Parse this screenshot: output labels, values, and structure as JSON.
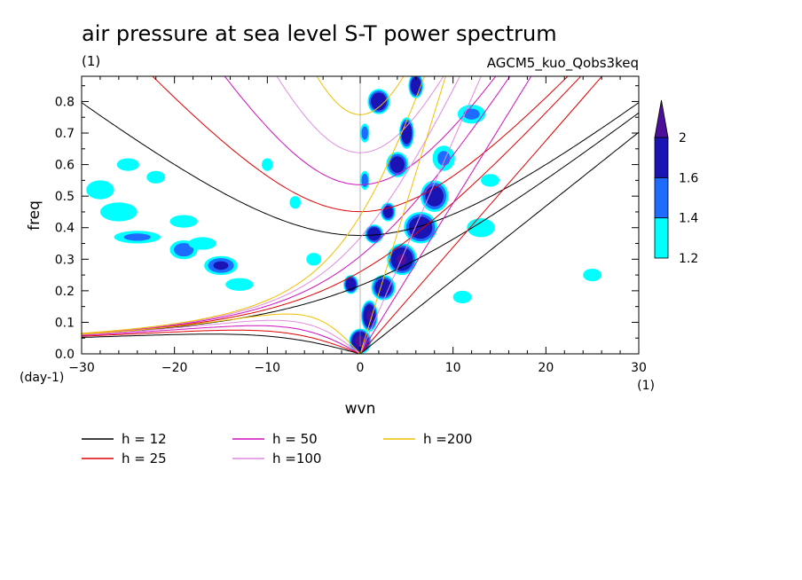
{
  "chart_data": {
    "type": "heatmap",
    "title": "air pressure at sea level S-T power spectrum",
    "title_units": "(1)",
    "model_label": "AGCM5_kuo_Qobs3keq",
    "xlabel": "wvn",
    "ylabel": "freq",
    "x_unit_label": "(1)",
    "y_unit_label": "(day-1)",
    "xlim": [
      -30,
      30
    ],
    "ylim": [
      0,
      0.88
    ],
    "xticks": [
      -30,
      -20,
      -10,
      0,
      10,
      20,
      30
    ],
    "yticks": [
      0.0,
      0.1,
      0.2,
      0.3,
      0.4,
      0.5,
      0.6,
      0.7,
      0.8
    ],
    "colorbar": {
      "levels": [
        1.2,
        1.4,
        1.6,
        2
      ],
      "colors": [
        "#00ffff",
        "#1e6bff",
        "#1a14b4",
        "#4b0f9a"
      ],
      "extend": "max"
    },
    "dispersion_curves": [
      {
        "label": "h = 12",
        "h": 12,
        "color": "#000000"
      },
      {
        "label": "h = 25",
        "h": 25,
        "color": "#e00000"
      },
      {
        "label": "h = 50",
        "h": 50,
        "color": "#d010c0"
      },
      {
        "label": "h =100",
        "h": 100,
        "color": "#e08ce0"
      },
      {
        "label": "h =200",
        "h": 200,
        "color": "#f0c000"
      }
    ],
    "blobs": [
      {
        "x": 0.0,
        "y": 0.04,
        "rx": 1.2,
        "ry": 0.04,
        "v": 2.2
      },
      {
        "x": 1.0,
        "y": 0.12,
        "rx": 0.9,
        "ry": 0.05,
        "v": 2.1
      },
      {
        "x": -1.0,
        "y": 0.22,
        "rx": 0.8,
        "ry": 0.03,
        "v": 2.0
      },
      {
        "x": 2.5,
        "y": 0.21,
        "rx": 1.3,
        "ry": 0.04,
        "v": 2.0
      },
      {
        "x": 4.5,
        "y": 0.3,
        "rx": 1.6,
        "ry": 0.05,
        "v": 2.1
      },
      {
        "x": 6.5,
        "y": 0.4,
        "rx": 1.8,
        "ry": 0.05,
        "v": 2.0
      },
      {
        "x": 8.0,
        "y": 0.5,
        "rx": 1.5,
        "ry": 0.05,
        "v": 1.9
      },
      {
        "x": 1.5,
        "y": 0.38,
        "rx": 1.0,
        "ry": 0.03,
        "v": 2.0
      },
      {
        "x": 3.0,
        "y": 0.45,
        "rx": 0.8,
        "ry": 0.03,
        "v": 1.9
      },
      {
        "x": 4.0,
        "y": 0.6,
        "rx": 1.2,
        "ry": 0.04,
        "v": 1.9
      },
      {
        "x": 5.0,
        "y": 0.7,
        "rx": 0.8,
        "ry": 0.05,
        "v": 2.0
      },
      {
        "x": 2.0,
        "y": 0.8,
        "rx": 1.2,
        "ry": 0.04,
        "v": 2.0
      },
      {
        "x": 6.0,
        "y": 0.85,
        "rx": 0.8,
        "ry": 0.04,
        "v": 2.0
      },
      {
        "x": 0.5,
        "y": 0.55,
        "rx": 0.5,
        "ry": 0.03,
        "v": 1.6
      },
      {
        "x": 0.5,
        "y": 0.7,
        "rx": 0.5,
        "ry": 0.03,
        "v": 1.6
      },
      {
        "x": 9.0,
        "y": 0.62,
        "rx": 1.2,
        "ry": 0.04,
        "v": 1.5
      },
      {
        "x": 12.0,
        "y": 0.76,
        "rx": 1.5,
        "ry": 0.03,
        "v": 1.5
      },
      {
        "x": -15.0,
        "y": 0.28,
        "rx": 1.8,
        "ry": 0.03,
        "v": 1.7
      },
      {
        "x": -19.0,
        "y": 0.33,
        "rx": 1.5,
        "ry": 0.03,
        "v": 1.6
      },
      {
        "x": -24.0,
        "y": 0.37,
        "rx": 2.5,
        "ry": 0.02,
        "v": 1.5
      },
      {
        "x": -13.0,
        "y": 0.22,
        "rx": 1.5,
        "ry": 0.02,
        "v": 1.4
      },
      {
        "x": -26.0,
        "y": 0.45,
        "rx": 2.0,
        "ry": 0.03,
        "v": 1.4
      },
      {
        "x": -19.0,
        "y": 0.42,
        "rx": 1.5,
        "ry": 0.02,
        "v": 1.3
      },
      {
        "x": -25.0,
        "y": 0.6,
        "rx": 1.2,
        "ry": 0.02,
        "v": 1.3
      },
      {
        "x": -22.0,
        "y": 0.56,
        "rx": 1.0,
        "ry": 0.02,
        "v": 1.3
      },
      {
        "x": -28.0,
        "y": 0.52,
        "rx": 1.5,
        "ry": 0.03,
        "v": 1.3
      },
      {
        "x": -17.0,
        "y": 0.35,
        "rx": 1.5,
        "ry": 0.02,
        "v": 1.4
      },
      {
        "x": 13.0,
        "y": 0.4,
        "rx": 1.5,
        "ry": 0.03,
        "v": 1.3
      },
      {
        "x": 25.0,
        "y": 0.25,
        "rx": 1.0,
        "ry": 0.02,
        "v": 1.3
      },
      {
        "x": -5.0,
        "y": 0.3,
        "rx": 0.8,
        "ry": 0.02,
        "v": 1.3
      },
      {
        "x": -7.0,
        "y": 0.48,
        "rx": 0.6,
        "ry": 0.02,
        "v": 1.3
      },
      {
        "x": -10.0,
        "y": 0.6,
        "rx": 0.6,
        "ry": 0.02,
        "v": 1.3
      },
      {
        "x": 11.0,
        "y": 0.18,
        "rx": 1.0,
        "ry": 0.02,
        "v": 1.3
      },
      {
        "x": 14.0,
        "y": 0.55,
        "rx": 1.0,
        "ry": 0.02,
        "v": 1.3
      }
    ]
  }
}
